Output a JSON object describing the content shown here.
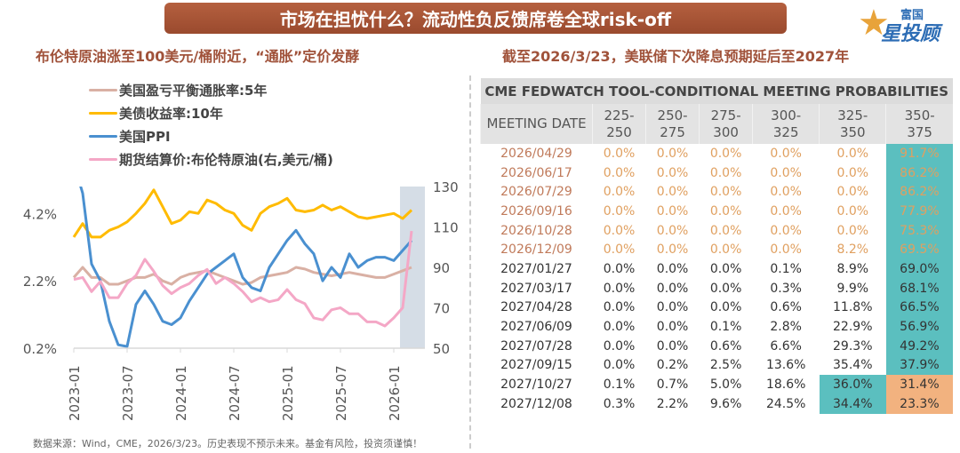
{
  "header": {
    "title": "市场在担忧什么？流动性负反馈席卷全球risk-off",
    "logo_text": "富国星投顾",
    "logo_top": "富国",
    "logo_bottom": "星投顾"
  },
  "left": {
    "title": "布伦特原油涨至100美元/桶附近，“通胀”定价发酵"
  },
  "right": {
    "title": "截至2026/3/23，美联储下次降息预期延后至2027年"
  },
  "footnote": "数据来源：Wind，CME，2026/3/23。历史表现不预示未来。基金有风险，投资须谨慎！",
  "chart_data": {
    "type": "line",
    "x": [
      "2023-01",
      "2023-02",
      "2023-03",
      "2023-04",
      "2023-05",
      "2023-06",
      "2023-07",
      "2023-08",
      "2023-09",
      "2023-10",
      "2023-11",
      "2023-12",
      "2024-01",
      "2024-02",
      "2024-03",
      "2024-04",
      "2024-05",
      "2024-06",
      "2024-07",
      "2024-08",
      "2024-09",
      "2024-10",
      "2024-11",
      "2024-12",
      "2025-01",
      "2025-02",
      "2025-03",
      "2025-04",
      "2025-05",
      "2025-06",
      "2025-07",
      "2025-08",
      "2025-09",
      "2025-10",
      "2025-11",
      "2025-12",
      "2026-01",
      "2026-02",
      "2026-03"
    ],
    "x_ticks": [
      "2023-01",
      "2023-07",
      "2024-01",
      "2024-07",
      "2025-01",
      "2025-07",
      "2026-01"
    ],
    "y_left": {
      "range": [
        0.2,
        5.0
      ],
      "ticks": [
        "0.2%",
        "2.2%",
        "4.2%"
      ]
    },
    "y_right": {
      "range": [
        50,
        130
      ],
      "ticks": [
        "50",
        "70",
        "90",
        "110",
        "130"
      ]
    },
    "highlight_range": [
      "2026-02",
      "2026-03"
    ],
    "highlight_color": "#d5dde6",
    "series": [
      {
        "name": "美国盈亏平衡通胀率:5年",
        "axis": "left",
        "color": "#d9b0a4",
        "values": [
          2.3,
          2.6,
          2.3,
          2.3,
          2.1,
          2.1,
          2.2,
          2.3,
          2.3,
          2.4,
          2.2,
          2.1,
          2.3,
          2.4,
          2.45,
          2.5,
          2.4,
          2.3,
          2.2,
          2.1,
          2.15,
          2.3,
          2.35,
          2.4,
          2.45,
          2.6,
          2.55,
          2.45,
          2.4,
          2.35,
          2.4,
          2.45,
          2.4,
          2.35,
          2.3,
          2.3,
          2.4,
          2.5,
          2.6
        ]
      },
      {
        "name": "美债收益率:10年",
        "axis": "left",
        "color": "#ffbb00",
        "values": [
          3.5,
          3.9,
          3.5,
          3.5,
          3.7,
          3.8,
          3.95,
          4.2,
          4.5,
          4.9,
          4.4,
          3.9,
          4.0,
          4.25,
          4.2,
          4.6,
          4.5,
          4.3,
          4.2,
          3.85,
          3.7,
          4.2,
          4.4,
          4.5,
          4.65,
          4.3,
          4.25,
          4.3,
          4.45,
          4.3,
          4.4,
          4.25,
          4.1,
          4.05,
          4.1,
          4.15,
          4.2,
          4.05,
          4.3
        ]
      },
      {
        "name": "美国PPI",
        "axis": "left",
        "color": "#4a90d0",
        "values": [
          5.7,
          4.8,
          2.7,
          2.2,
          1.0,
          0.3,
          0.25,
          1.5,
          1.9,
          1.5,
          1.0,
          0.9,
          1.1,
          1.6,
          2.0,
          2.4,
          2.6,
          2.8,
          3.0,
          2.3,
          2.0,
          1.9,
          2.6,
          3.0,
          3.4,
          3.7,
          3.3,
          3.0,
          2.2,
          2.6,
          2.3,
          3.0,
          2.6,
          2.8,
          2.9,
          2.9,
          2.8,
          3.1,
          3.4
        ]
      },
      {
        "name": "期货结算价:布伦特原油(右,美元/桶)",
        "axis": "right",
        "color": "#f4a7c6",
        "values": [
          84,
          85,
          78,
          83,
          75,
          75,
          82,
          86,
          94,
          88,
          81,
          77,
          80,
          82,
          86,
          89,
          82,
          85,
          82,
          78,
          73,
          75,
          73,
          74,
          79,
          74,
          72,
          65,
          64,
          69,
          70,
          67,
          67,
          63,
          63,
          61,
          65,
          70,
          108
        ]
      }
    ]
  },
  "table": {
    "title": "CME FEDWATCH TOOL-CONDITIONAL MEETING PROBABILITIES",
    "columns": [
      [
        "MEETING DATE",
        ""
      ],
      [
        "225-",
        "250"
      ],
      [
        "250-",
        "275"
      ],
      [
        "275-",
        "300"
      ],
      [
        "300-",
        "325"
      ],
      [
        "325-",
        "350"
      ],
      [
        "350-",
        "375"
      ]
    ],
    "colors": {
      "teal": "#5bbfbf",
      "orange": "#f2b27f"
    },
    "rows": [
      [
        "2026/04/29",
        "0.0%",
        "0.0%",
        "0.0%",
        "0.0%",
        "0.0%",
        "91.7%"
      ],
      [
        "2026/06/17",
        "0.0%",
        "0.0%",
        "0.0%",
        "0.0%",
        "0.0%",
        "86.2%"
      ],
      [
        "2026/07/29",
        "0.0%",
        "0.0%",
        "0.0%",
        "0.0%",
        "0.0%",
        "86.2%"
      ],
      [
        "2026/09/16",
        "0.0%",
        "0.0%",
        "0.0%",
        "0.0%",
        "0.0%",
        "77.9%"
      ],
      [
        "2026/10/28",
        "0.0%",
        "0.0%",
        "0.0%",
        "0.0%",
        "0.0%",
        "75.3%"
      ],
      [
        "2026/12/09",
        "0.0%",
        "0.0%",
        "0.0%",
        "0.0%",
        "8.2%",
        "69.5%"
      ],
      [
        "2027/01/27",
        "0.0%",
        "0.0%",
        "0.0%",
        "0.1%",
        "8.9%",
        "69.0%"
      ],
      [
        "2027/03/17",
        "0.0%",
        "0.0%",
        "0.0%",
        "0.3%",
        "9.9%",
        "68.1%"
      ],
      [
        "2027/04/28",
        "0.0%",
        "0.0%",
        "0.0%",
        "0.6%",
        "11.8%",
        "66.5%"
      ],
      [
        "2027/06/09",
        "0.0%",
        "0.0%",
        "0.1%",
        "2.8%",
        "22.9%",
        "56.9%"
      ],
      [
        "2027/07/28",
        "0.0%",
        "0.0%",
        "0.6%",
        "6.6%",
        "29.3%",
        "49.2%"
      ],
      [
        "2027/09/15",
        "0.0%",
        "0.2%",
        "2.5%",
        "13.6%",
        "35.4%",
        "37.9%"
      ],
      [
        "2027/10/27",
        "0.1%",
        "0.7%",
        "5.0%",
        "18.6%",
        "36.0%",
        "31.4%"
      ],
      [
        "2027/12/08",
        "0.3%",
        "2.2%",
        "9.6%",
        "24.5%",
        "34.4%",
        "23.3%"
      ]
    ]
  }
}
